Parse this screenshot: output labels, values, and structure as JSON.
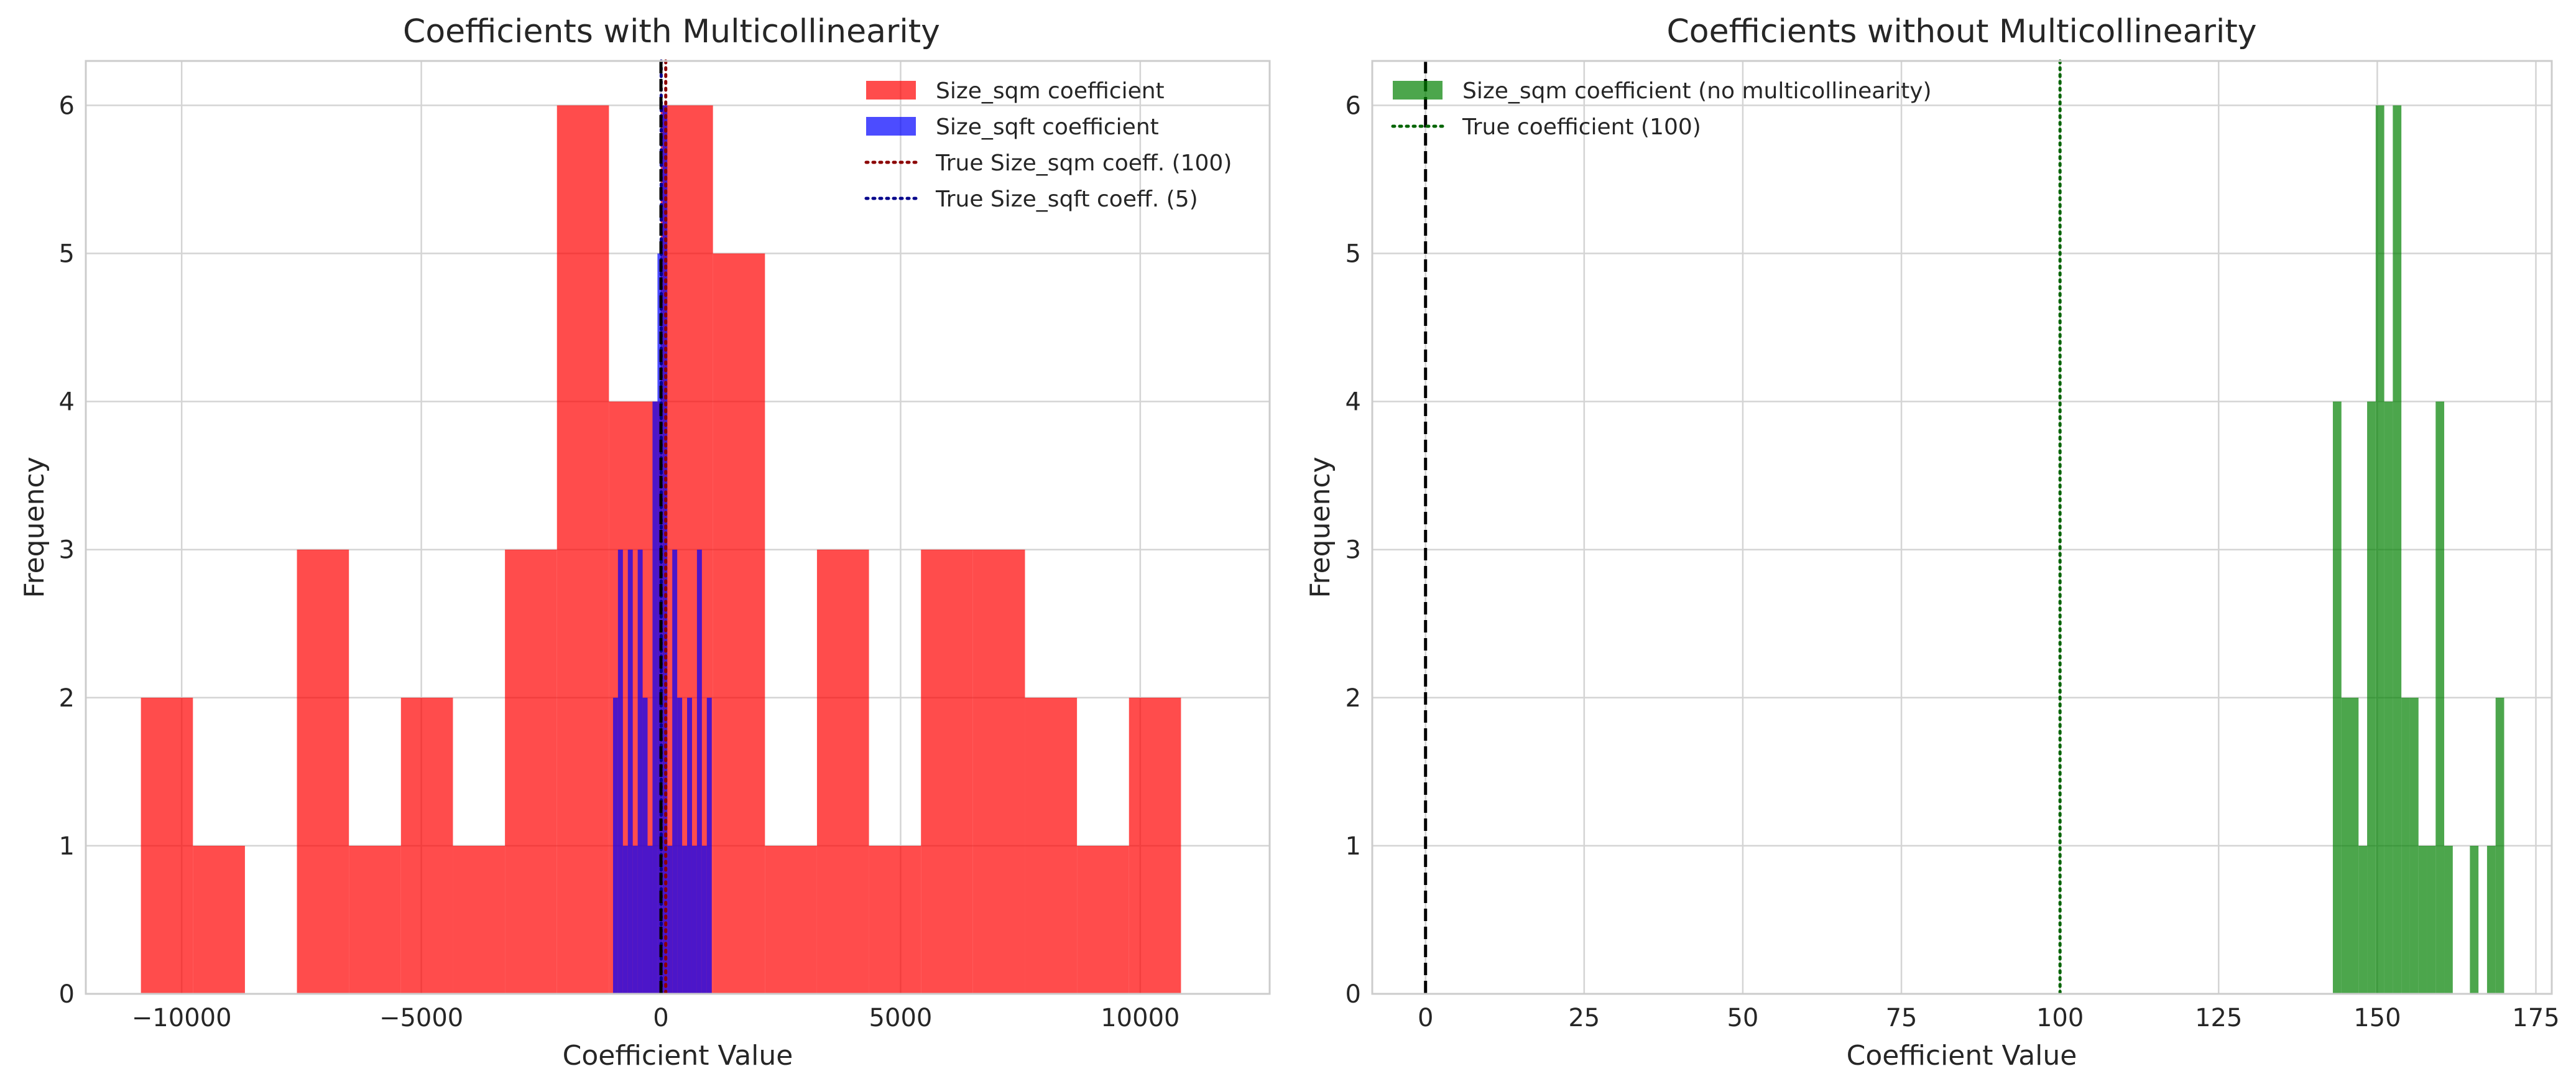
{
  "chart_data": [
    {
      "type": "histogram",
      "title": "Coefficients with Multicollinearity",
      "xlabel": "Coefficient Value",
      "ylabel": "Frequency",
      "xlim": [
        -12000,
        12700
      ],
      "ylim": [
        0,
        6.3
      ],
      "xticks": [
        -10000,
        -5000,
        0,
        5000,
        10000
      ],
      "xtick_labels": [
        "−10000",
        "−5000",
        "0",
        "5000",
        "10000"
      ],
      "yticks": [
        0,
        1,
        2,
        3,
        4,
        5,
        6
      ],
      "ytick_labels": [
        "0",
        "1",
        "2",
        "3",
        "4",
        "5",
        "6"
      ],
      "grid": true,
      "legend_position": "upper-right",
      "series": [
        {
          "name": "Size_sqm coefficient",
          "kind": "bars",
          "color": "#ff0000",
          "alpha": 0.7,
          "bin_width": 1085,
          "bin_starts": [
            -10850,
            -9765,
            -8680,
            -7595,
            -6510,
            -5425,
            -4340,
            -3255,
            -2170,
            -1085,
            0,
            1085,
            2170,
            3255,
            4340,
            5425,
            6510,
            7595,
            8680,
            9765
          ],
          "counts": [
            2,
            1,
            0,
            3,
            1,
            2,
            1,
            3,
            6,
            4,
            6,
            5,
            1,
            3,
            1,
            3,
            3,
            2,
            1,
            2
          ]
        },
        {
          "name": "Size_sqft coefficient",
          "kind": "bars",
          "color": "#0000ff",
          "alpha": 0.7,
          "bin_width": 103,
          "bin_starts": [
            -1000,
            -897,
            -794,
            -691,
            -588,
            -485,
            -382,
            -279,
            -176,
            -73,
            30,
            133,
            236,
            339,
            442,
            545,
            648,
            751,
            854,
            957
          ],
          "counts": [
            2,
            3,
            1,
            3,
            1,
            3,
            2,
            1,
            4,
            5,
            6,
            1,
            3,
            2,
            1,
            2,
            1,
            3,
            1,
            2
          ]
        },
        {
          "name": "True Size_sqm coeff. (100)",
          "kind": "vline",
          "value": 100,
          "color": "#8b0000",
          "style": "dotted"
        },
        {
          "name": "True Size_sqft coeff. (5)",
          "kind": "vline",
          "value": 5,
          "color": "#00008b",
          "style": "dotted"
        },
        {
          "kind": "vline",
          "value": 0,
          "color": "#000000",
          "style": "dashed"
        }
      ]
    },
    {
      "type": "histogram",
      "title": "Coefficients without Multicollinearity",
      "xlabel": "Coefficient Value",
      "ylabel": "Frequency",
      "xlim": [
        -8.4,
        177.5
      ],
      "ylim": [
        0,
        6.3
      ],
      "xticks": [
        0,
        25,
        50,
        75,
        100,
        125,
        150,
        175
      ],
      "xtick_labels": [
        "0",
        "25",
        "50",
        "75",
        "100",
        "125",
        "150",
        "175"
      ],
      "yticks": [
        0,
        1,
        2,
        3,
        4,
        5,
        6
      ],
      "ytick_labels": [
        "0",
        "1",
        "2",
        "3",
        "4",
        "5",
        "6"
      ],
      "grid": true,
      "legend_position": "upper-left",
      "series": [
        {
          "name": "Size_sqm coefficient (no multicollinearity)",
          "kind": "bars",
          "color": "#008000",
          "alpha": 0.7,
          "bin_width": 1.35,
          "bin_starts": [
            143.0,
            144.35,
            145.7,
            147.05,
            148.4,
            149.75,
            151.1,
            152.45,
            153.8,
            155.15,
            156.5,
            157.85,
            159.2,
            160.55,
            161.9,
            163.25,
            164.6,
            165.95,
            167.3,
            168.65
          ],
          "counts": [
            4,
            2,
            2,
            1,
            4,
            6,
            4,
            6,
            2,
            2,
            1,
            1,
            4,
            1,
            0,
            0,
            1,
            0,
            1,
            2
          ]
        },
        {
          "name": "True coefficient (100)",
          "kind": "vline",
          "value": 100,
          "color": "#006400",
          "style": "dotted"
        },
        {
          "kind": "vline",
          "value": 0,
          "color": "#000000",
          "style": "dashed"
        }
      ]
    }
  ]
}
